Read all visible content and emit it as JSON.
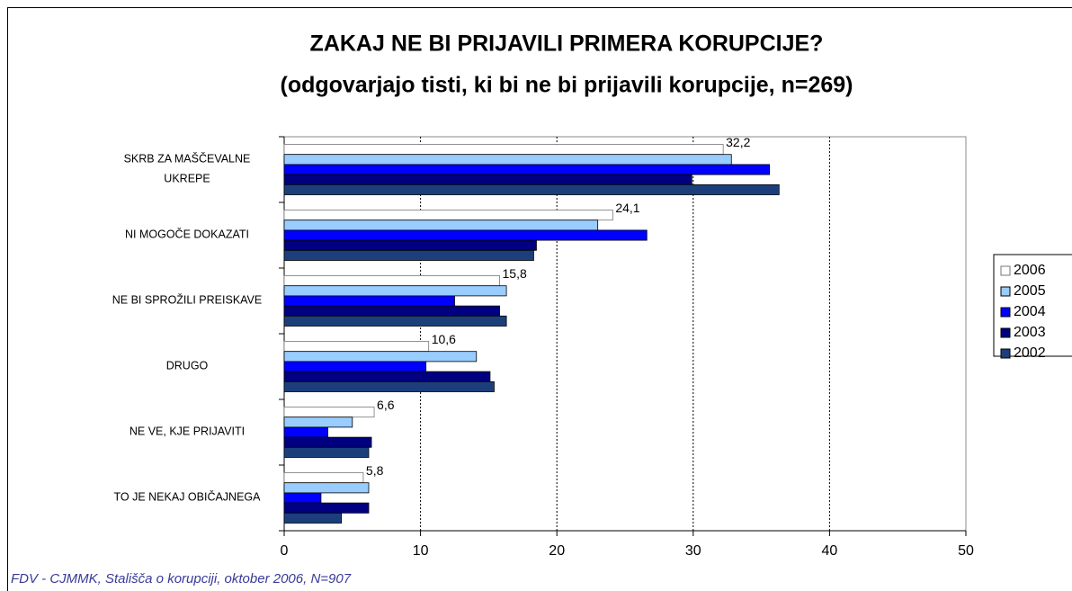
{
  "chart_data": {
    "type": "hbar",
    "title": "ZAKAJ NE BI PRIJAVILI PRIMERA KORUPCIJE?",
    "subtitle": "(odgovarjajo tisti, ki bi ne bi prijavili korupcije, n=269)",
    "source": "FDV - CJMMK, Stališča o korupciji, oktober 2006, N=907",
    "categories": [
      "SKRB ZA MAŠČEVALNE\nUKREPE",
      "NI MOGOČE DOKAZATI",
      "NE BI SPROŽILI PREISKAVE",
      "DRUGO",
      "NE VE, KJE PRIJAVITI",
      "TO JE NEKAJ OBIČAJNEGA"
    ],
    "series": [
      {
        "name": "2006",
        "color": "#ffffff",
        "values": [
          32.2,
          24.1,
          15.8,
          10.6,
          6.6,
          5.8
        ],
        "value_labels": [
          "32,2",
          "24,1",
          "15,8",
          "10,6",
          "6,6",
          "5,8"
        ]
      },
      {
        "name": "2005",
        "color": "#99ccff",
        "values": [
          32.8,
          23.0,
          16.3,
          14.1,
          5.0,
          6.2
        ]
      },
      {
        "name": "2004",
        "color": "#0000ff",
        "values": [
          35.6,
          26.6,
          12.5,
          10.4,
          3.2,
          2.7
        ]
      },
      {
        "name": "2003",
        "color": "#000080",
        "values": [
          29.9,
          18.5,
          15.8,
          15.1,
          6.4,
          6.2
        ]
      },
      {
        "name": "2002",
        "color": "#1c3f7c",
        "values": [
          36.3,
          18.3,
          16.3,
          15.4,
          6.2,
          4.2
        ]
      }
    ],
    "xlim": [
      0,
      50
    ],
    "xticks": [
      0,
      10,
      20,
      30,
      40,
      50
    ],
    "grid": true,
    "legend": "right"
  }
}
